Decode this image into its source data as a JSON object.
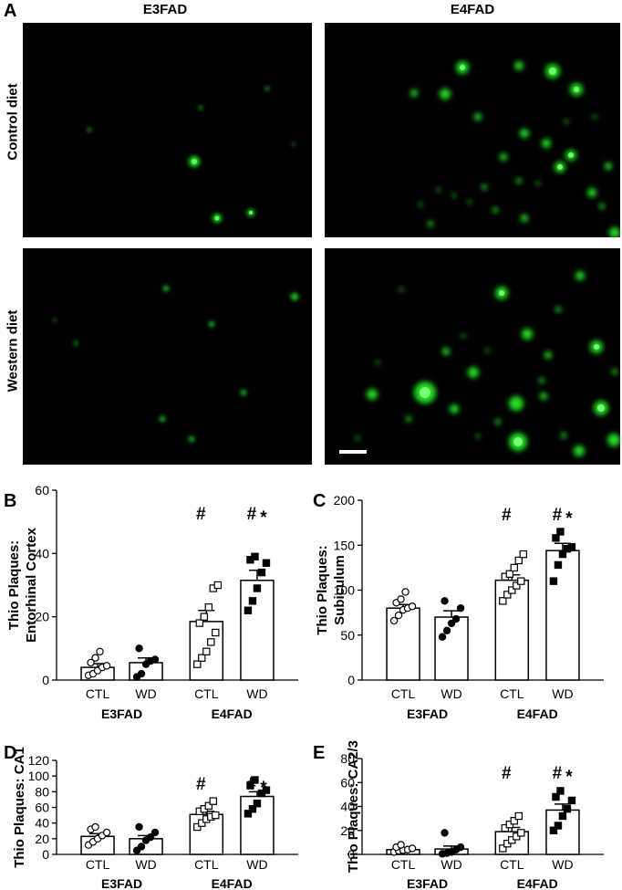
{
  "panel_a": {
    "letter": "A",
    "columns": [
      "E3FAD",
      "E4FAD"
    ],
    "rows": [
      "Control diet",
      "Western diet"
    ]
  },
  "chart_data": [
    {
      "panel": "B",
      "type": "bar",
      "ylabel": "Thio Plaques:\nEntorhinal Cortex",
      "ylim": [
        0,
        60
      ],
      "yticks": [
        0,
        20,
        40,
        60
      ],
      "categories": [
        "CTL",
        "WD",
        "CTL",
        "WD"
      ],
      "groups": [
        "E3FAD",
        "E4FAD"
      ],
      "means": [
        4,
        5.5,
        18.5,
        31.5
      ],
      "sem": [
        1.2,
        1.5,
        3.5,
        3.2
      ],
      "markers": [
        "open-circle",
        "filled-circle",
        "open-square",
        "filled-square"
      ],
      "annotations": [
        "",
        "",
        "#",
        "#*"
      ],
      "points": [
        [
          1.5,
          2,
          3,
          4,
          4.5,
          5.5,
          7,
          9
        ],
        [
          1,
          2,
          5,
          6,
          6.5,
          10
        ],
        [
          5,
          7,
          9,
          12,
          15,
          18,
          20,
          23,
          29,
          30
        ],
        [
          22,
          25,
          29,
          34,
          37,
          38,
          39
        ]
      ]
    },
    {
      "panel": "C",
      "type": "bar",
      "ylabel": "Thio Plaques:\nSubiculum",
      "ylim": [
        0,
        200
      ],
      "yticks": [
        0,
        50,
        100,
        150,
        200
      ],
      "categories": [
        "CTL",
        "WD",
        "CTL",
        "WD"
      ],
      "groups": [
        "E3FAD",
        "E4FAD"
      ],
      "means": [
        80,
        70,
        111,
        144
      ],
      "sem": [
        4,
        7,
        6,
        8
      ],
      "markers": [
        "open-circle",
        "filled-circle",
        "open-square",
        "filled-square"
      ],
      "annotations": [
        "",
        "",
        "#",
        "#*"
      ],
      "points": [
        [
          66,
          72,
          78,
          80,
          82,
          86,
          90,
          98
        ],
        [
          48,
          55,
          63,
          68,
          80,
          88
        ],
        [
          88,
          95,
          100,
          105,
          110,
          115,
          118,
          125,
          133,
          140
        ],
        [
          110,
          128,
          140,
          146,
          148,
          158,
          165
        ]
      ]
    },
    {
      "panel": "D",
      "type": "bar",
      "ylabel": "Thio Plaques: CA1",
      "ylim": [
        0,
        120
      ],
      "yticks": [
        0,
        20,
        40,
        60,
        80,
        100,
        120
      ],
      "categories": [
        "CTL",
        "WD",
        "CTL",
        "WD"
      ],
      "groups": [
        "E3FAD",
        "E4FAD"
      ],
      "means": [
        23,
        20,
        51,
        74
      ],
      "sem": [
        3.5,
        4,
        4,
        6
      ],
      "markers": [
        "open-circle",
        "filled-circle",
        "open-square",
        "filled-square"
      ],
      "annotations": [
        "",
        "",
        "#",
        "#*"
      ],
      "points": [
        [
          12,
          16,
          20,
          24,
          28,
          32,
          35
        ],
        [
          5,
          10,
          18,
          22,
          28,
          35
        ],
        [
          35,
          40,
          45,
          48,
          50,
          55,
          58,
          62,
          68
        ],
        [
          52,
          58,
          65,
          78,
          82,
          88,
          95
        ]
      ]
    },
    {
      "panel": "E",
      "type": "bar",
      "ylabel": "Thio Plaques: CA2/3",
      "ylim": [
        0,
        80
      ],
      "yticks": [
        0,
        20,
        40,
        60,
        80
      ],
      "categories": [
        "CTL",
        "WD",
        "CTL",
        "WD"
      ],
      "groups": [
        "E3FAD",
        "E4FAD"
      ],
      "means": [
        4,
        4.5,
        19,
        37
      ],
      "sem": [
        1,
        2.5,
        3.5,
        5
      ],
      "markers": [
        "open-circle",
        "filled-circle",
        "open-square",
        "filled-square"
      ],
      "annotations": [
        "",
        "",
        "#",
        "#*"
      ],
      "points": [
        [
          2,
          3,
          3.5,
          4,
          5,
          6,
          8
        ],
        [
          0.5,
          1,
          2,
          4,
          6,
          18
        ],
        [
          5,
          9,
          12,
          15,
          18,
          22,
          25,
          28,
          32
        ],
        [
          20,
          24,
          32,
          38,
          45,
          48,
          53
        ]
      ]
    }
  ]
}
